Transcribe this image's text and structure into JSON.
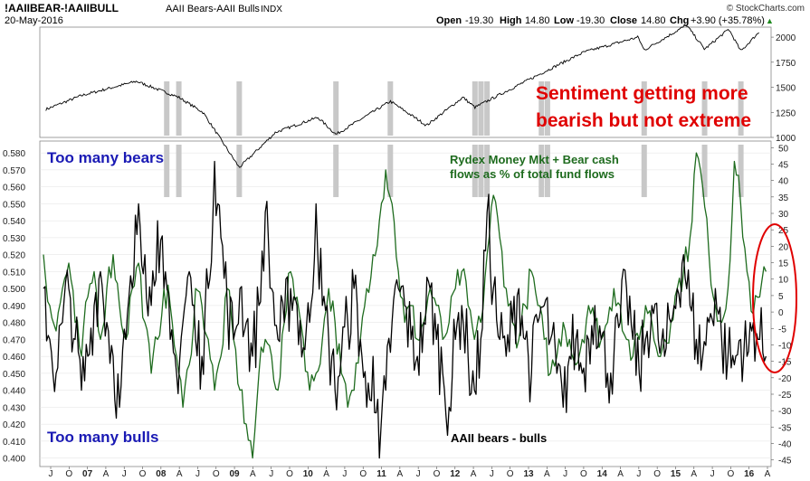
{
  "header": {
    "symbol": "!AAIIBEAR-!AAIIBULL",
    "description": "AAII Bears-AAII Bulls",
    "exchange": "INDX",
    "date": "20-May-2016",
    "open_label": "Open",
    "open": "-19.30",
    "high_label": "High",
    "high": "14.80",
    "low_label": "Low",
    "low": "-19.30",
    "close_label": "Close",
    "close": "14.80",
    "chg_label": "Chg",
    "chg": "+3.90 (+35.78%)",
    "chg_arrow": "▲",
    "watermark": "© StockCharts.com"
  },
  "annotations": {
    "too_many_bears": "Too many bears",
    "too_many_bulls": "Too many bulls",
    "sentiment_line1": "Sentiment getting more",
    "sentiment_line2": "bearish but not extreme",
    "rydex_line1": "Rydex Money Mkt + Bear cash",
    "rydex_line2": "flows as % of total fund flows",
    "aaii_label": "AAII bears - bulls"
  },
  "colors": {
    "background": "#ffffff",
    "price_line": "#000000",
    "rydex_line": "#1e6b1e",
    "aaii_line": "#000000",
    "highlight_bars": "#c8c8c8",
    "sentiment_text": "#e00000",
    "bears_bulls_text": "#1a1ab4",
    "rydex_text": "#1e6b1e",
    "ellipse": "#e00000",
    "grid": "#e0e0e0",
    "axis_text": "#222222"
  },
  "chart_data": [
    {
      "type": "line",
      "title": "",
      "ylim": [
        1000,
        2100
      ],
      "y_ticks": [
        "2000",
        "1750",
        "1500",
        "1250",
        "1000"
      ],
      "x": [
        "2006-07",
        "2007-01",
        "2007-10",
        "2008-05",
        "2008-09",
        "2009-03",
        "2009-09",
        "2010-04",
        "2010-07",
        "2011-04",
        "2011-10",
        "2012-04",
        "2012-06",
        "2013-05",
        "2013-12",
        "2014-09",
        "2014-10",
        "2015-05",
        "2015-08",
        "2015-12",
        "2016-02",
        "2016-05"
      ],
      "series": [
        {
          "values": [
            1280,
            1420,
            1560,
            1400,
            1250,
            700,
            1050,
            1200,
            1030,
            1360,
            1120,
            1400,
            1300,
            1640,
            1850,
            2000,
            1870,
            2120,
            1880,
            2080,
            1860,
            2050
          ]
        }
      ]
    },
    {
      "type": "line",
      "title": "",
      "ylim": [
        0.395,
        0.587
      ],
      "y_ticks": [
        "0.580",
        "0.570",
        "0.560",
        "0.550",
        "0.540",
        "0.530",
        "0.520",
        "0.510",
        "0.500",
        "0.490",
        "0.480",
        "0.470",
        "0.460",
        "0.450",
        "0.440",
        "0.430",
        "0.420",
        "0.410",
        "0.400"
      ],
      "x_ticks": [
        "J",
        "O",
        "07",
        "A",
        "J",
        "O",
        "08",
        "A",
        "J",
        "O",
        "09",
        "A",
        "J",
        "O",
        "10",
        "A",
        "J",
        "O",
        "11",
        "A",
        "J",
        "O",
        "12",
        "A",
        "J",
        "O",
        "13",
        "A",
        "J",
        "O",
        "14",
        "A",
        "J",
        "O",
        "15",
        "A",
        "J",
        "O",
        "16",
        "A"
      ],
      "series": [
        {
          "name": "Rydex Money Mkt + Bear cash flows as % of total fund flows",
          "values": [
            0.52,
            0.49,
            0.475,
            0.5,
            0.515,
            0.48,
            0.46,
            0.495,
            0.51,
            0.47,
            0.5,
            0.52,
            0.49,
            0.47,
            0.5,
            0.515,
            0.48,
            0.45,
            0.47,
            0.5,
            0.49,
            0.46,
            0.43,
            0.455,
            0.5,
            0.49,
            0.47,
            0.44,
            0.46,
            0.5,
            0.47,
            0.44,
            0.42,
            0.4,
            0.45,
            0.47,
            0.46,
            0.44,
            0.48,
            0.51,
            0.495,
            0.47,
            0.44,
            0.45,
            0.47,
            0.5,
            0.48,
            0.45,
            0.43,
            0.44,
            0.47,
            0.5,
            0.52,
            0.54,
            0.57,
            0.55,
            0.51,
            0.48,
            0.49,
            0.47,
            0.48,
            0.5,
            0.49,
            0.47,
            0.48,
            0.5,
            0.51,
            0.49,
            0.47,
            0.48,
            0.52,
            0.555,
            0.53,
            0.5,
            0.48,
            0.47,
            0.49,
            0.51,
            0.49,
            0.47,
            0.45,
            0.46,
            0.48,
            0.47,
            0.455,
            0.47,
            0.49,
            0.48,
            0.47,
            0.48,
            0.5,
            0.49,
            0.47,
            0.46,
            0.47,
            0.49,
            0.48,
            0.46,
            0.47,
            0.48,
            0.5,
            0.51,
            0.53,
            0.58,
            0.56,
            0.52,
            0.49,
            0.48,
            0.5,
            0.575,
            0.55,
            0.51,
            0.485,
            0.495,
            0.51
          ]
        },
        {
          "name": "AAII bears - bulls",
          "values": [
            0.5,
            0.47,
            0.45,
            0.48,
            0.5,
            0.47,
            0.44,
            0.46,
            0.49,
            0.51,
            0.48,
            0.46,
            0.43,
            0.47,
            0.5,
            0.55,
            0.52,
            0.49,
            0.54,
            0.5,
            0.47,
            0.45,
            0.48,
            0.51,
            0.47,
            0.46,
            0.5,
            0.575,
            0.53,
            0.49,
            0.47,
            0.5,
            0.48,
            0.46,
            0.49,
            0.545,
            0.5,
            0.47,
            0.48,
            0.5,
            0.49,
            0.465,
            0.48,
            0.55,
            0.49,
            0.47,
            0.44,
            0.46,
            0.48,
            0.5,
            0.47,
            0.43,
            0.46,
            0.4,
            0.44,
            0.48,
            0.5,
            0.49,
            0.47,
            0.46,
            0.48,
            0.5,
            0.47,
            0.45,
            0.43,
            0.47,
            0.49,
            0.46,
            0.44,
            0.47,
            0.545,
            0.5,
            0.47,
            0.46,
            0.48,
            0.5,
            0.47,
            0.45,
            0.48,
            0.49,
            0.47,
            0.45,
            0.43,
            0.46,
            0.47,
            0.45,
            0.47,
            0.49,
            0.47,
            0.45,
            0.46,
            0.48,
            0.5,
            0.47,
            0.45,
            0.47,
            0.49,
            0.47,
            0.46,
            0.48,
            0.5,
            0.52,
            0.49,
            0.47,
            0.46,
            0.48,
            0.5,
            0.47,
            0.46,
            0.455,
            0.47,
            0.46,
            0.48,
            0.47,
            0.46
          ]
        }
      ]
    },
    {
      "type": "line",
      "title": "",
      "ylim": [
        -47,
        52
      ],
      "y_ticks": [
        "50",
        "45",
        "40",
        "35",
        "30",
        "25",
        "20",
        "15",
        "10",
        "5",
        "0",
        "-5",
        "-10",
        "-15",
        "-20",
        "-25",
        "-30",
        "-35",
        "-40",
        "-45"
      ]
    }
  ],
  "highlight_dates": [
    "2008-03",
    "2008-05",
    "2009-03",
    "2010-07",
    "2011-04",
    "2012-06",
    "2012-07",
    "2012-08",
    "2013-05",
    "2013-06",
    "2014-10",
    "2015-08",
    "2016-02"
  ]
}
